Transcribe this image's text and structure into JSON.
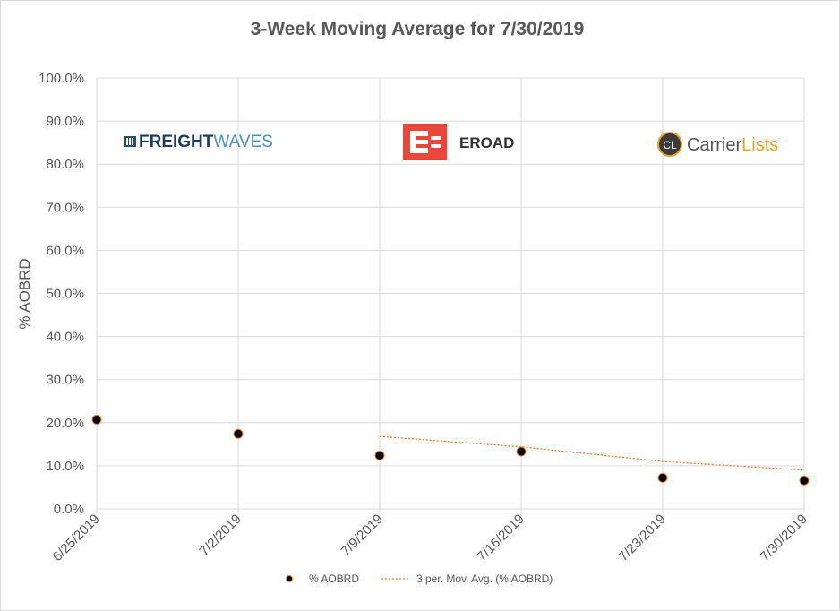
{
  "chart_data": {
    "type": "scatter",
    "title": "3-Week Moving Average for 7/30/2019",
    "xlabel": "",
    "ylabel": "% AOBRD",
    "categories": [
      "6/25/2019",
      "7/2/2019",
      "7/9/2019",
      "7/16/2019",
      "7/23/2019",
      "7/30/2019"
    ],
    "series": [
      {
        "name": "% AOBRD",
        "values": [
          20.7,
          17.4,
          12.4,
          13.3,
          7.2,
          6.6
        ]
      },
      {
        "name": "3 per. Mov. Avg. (% AOBRD)",
        "values": [
          null,
          null,
          16.8,
          14.4,
          11.0,
          9.0
        ]
      }
    ],
    "yticks": [
      "0.0%",
      "10.0%",
      "20.0%",
      "30.0%",
      "40.0%",
      "50.0%",
      "60.0%",
      "70.0%",
      "80.0%",
      "90.0%",
      "100.0%"
    ],
    "ylim": [
      0,
      100
    ],
    "grid": true,
    "legend": "bottom"
  },
  "logos": {
    "freightwaves_a": "FREIGHT",
    "freightwaves_b": "WAVES",
    "eroad": "EROAD",
    "carrierlists_badge": "CL",
    "carrierlists_a": "Carrier",
    "carrierlists_b": "Lists"
  },
  "colors": {
    "marker_fill": "#000000",
    "marker_edge": "#ed7d31",
    "trend_line": "#ed7d31",
    "grid": "#d9d9d9",
    "text": "#595959"
  }
}
